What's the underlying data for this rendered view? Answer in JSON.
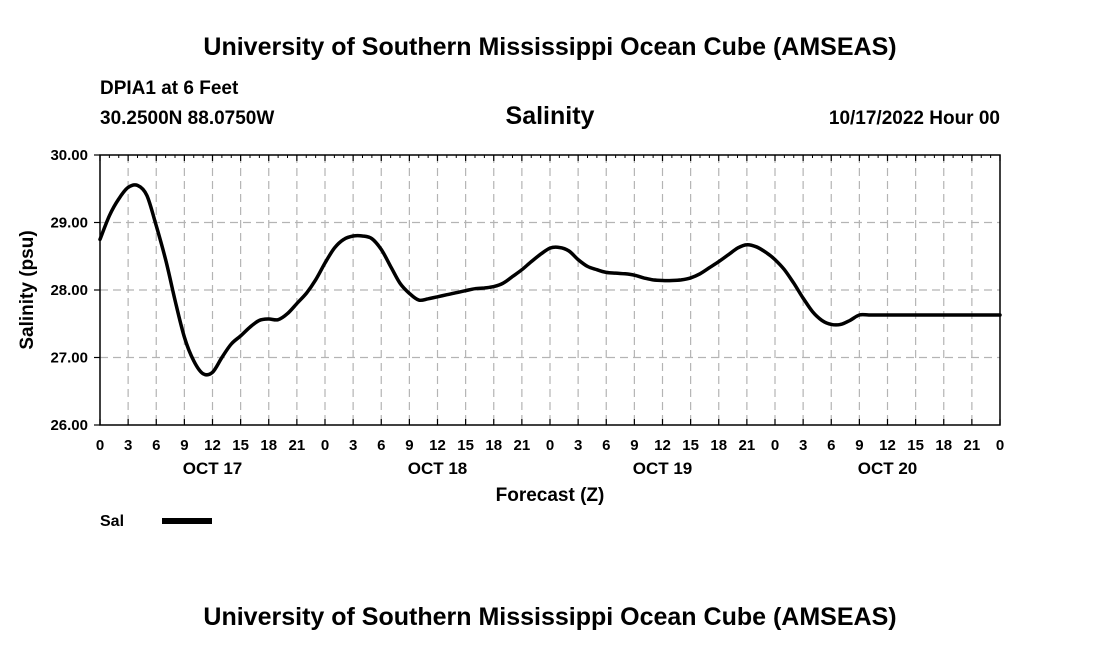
{
  "header": {
    "title": "University of Southern Mississippi Ocean Cube (AMSEAS)",
    "station": "DPIA1 at 6 Feet",
    "location": "30.2500N  88.0750W",
    "datetime": "10/17/2022 Hour 00"
  },
  "footer": {
    "title": "University of Southern Mississippi Ocean Cube (AMSEAS)"
  },
  "chart_data": {
    "type": "line",
    "title": "Salinity",
    "xlabel": "Forecast (Z)",
    "ylabel": "Salinity (psu)",
    "ylim": [
      26.0,
      30.0
    ],
    "xlim": [
      0,
      96
    ],
    "y_ticks": [
      "26.00",
      "27.00",
      "28.00",
      "29.00",
      "30.00"
    ],
    "y_tick_values": [
      26,
      27,
      28,
      29,
      30
    ],
    "x_tick_labels": [
      "0",
      "3",
      "6",
      "9",
      "12",
      "15",
      "18",
      "21",
      "0",
      "3",
      "6",
      "9",
      "12",
      "15",
      "18",
      "21",
      "0",
      "3",
      "6",
      "9",
      "12",
      "15",
      "18",
      "21",
      "0",
      "3",
      "6",
      "9",
      "12",
      "15",
      "18",
      "21",
      "0"
    ],
    "x_tick_hours": [
      0,
      3,
      6,
      9,
      12,
      15,
      18,
      21,
      24,
      27,
      30,
      33,
      36,
      39,
      42,
      45,
      48,
      51,
      54,
      57,
      60,
      63,
      66,
      69,
      72,
      75,
      78,
      81,
      84,
      87,
      90,
      93,
      96
    ],
    "date_labels": [
      {
        "label": "OCT 17",
        "hour": 12
      },
      {
        "label": "OCT 18",
        "hour": 36
      },
      {
        "label": "OCT 19",
        "hour": 60
      },
      {
        "label": "OCT 20",
        "hour": 84
      }
    ],
    "grid": true,
    "legend": {
      "placement": "bottom-left",
      "entries": [
        "Sal"
      ]
    },
    "series": [
      {
        "name": "Sal",
        "color": "#000000",
        "x": [
          0,
          1,
          2,
          3,
          4,
          5,
          6,
          7,
          8,
          9,
          10,
          11,
          12,
          13,
          14,
          15,
          16,
          17,
          18,
          19,
          20,
          21,
          22,
          23,
          24,
          25,
          26,
          27,
          28,
          29,
          30,
          31,
          32,
          33,
          34,
          35,
          36,
          37,
          38,
          39,
          40,
          41,
          42,
          43,
          44,
          45,
          46,
          47,
          48,
          49,
          50,
          51,
          52,
          53,
          54,
          55,
          56,
          57,
          58,
          59,
          60,
          61,
          62,
          63,
          64,
          65,
          66,
          67,
          68,
          69,
          70,
          71,
          72,
          73,
          74,
          75,
          76,
          77,
          78,
          79,
          80,
          81,
          82,
          83,
          84,
          85,
          86,
          87,
          88,
          89,
          90,
          91,
          92,
          93,
          94,
          95,
          96
        ],
        "values": [
          28.75,
          29.1,
          29.35,
          29.52,
          29.55,
          29.4,
          28.95,
          28.45,
          27.85,
          27.3,
          26.95,
          26.76,
          26.78,
          27.0,
          27.2,
          27.32,
          27.45,
          27.55,
          27.57,
          27.56,
          27.65,
          27.8,
          27.95,
          28.15,
          28.4,
          28.62,
          28.75,
          28.8,
          28.8,
          28.76,
          28.6,
          28.35,
          28.1,
          27.95,
          27.85,
          27.87,
          27.9,
          27.93,
          27.96,
          27.99,
          28.02,
          28.03,
          28.05,
          28.1,
          28.2,
          28.3,
          28.42,
          28.53,
          28.62,
          28.63,
          28.58,
          28.45,
          28.35,
          28.3,
          28.26,
          28.25,
          28.24,
          28.22,
          28.18,
          28.15,
          28.14,
          28.14,
          28.15,
          28.18,
          28.24,
          28.33,
          28.42,
          28.52,
          28.62,
          28.67,
          28.64,
          28.56,
          28.45,
          28.3,
          28.1,
          27.88,
          27.68,
          27.55,
          27.49,
          27.49,
          27.55,
          27.63,
          27.63,
          27.63,
          27.63,
          27.63,
          27.63,
          27.63,
          27.63,
          27.63,
          27.63,
          27.63,
          27.63,
          27.63,
          27.63,
          27.63,
          27.63
        ]
      }
    ]
  }
}
